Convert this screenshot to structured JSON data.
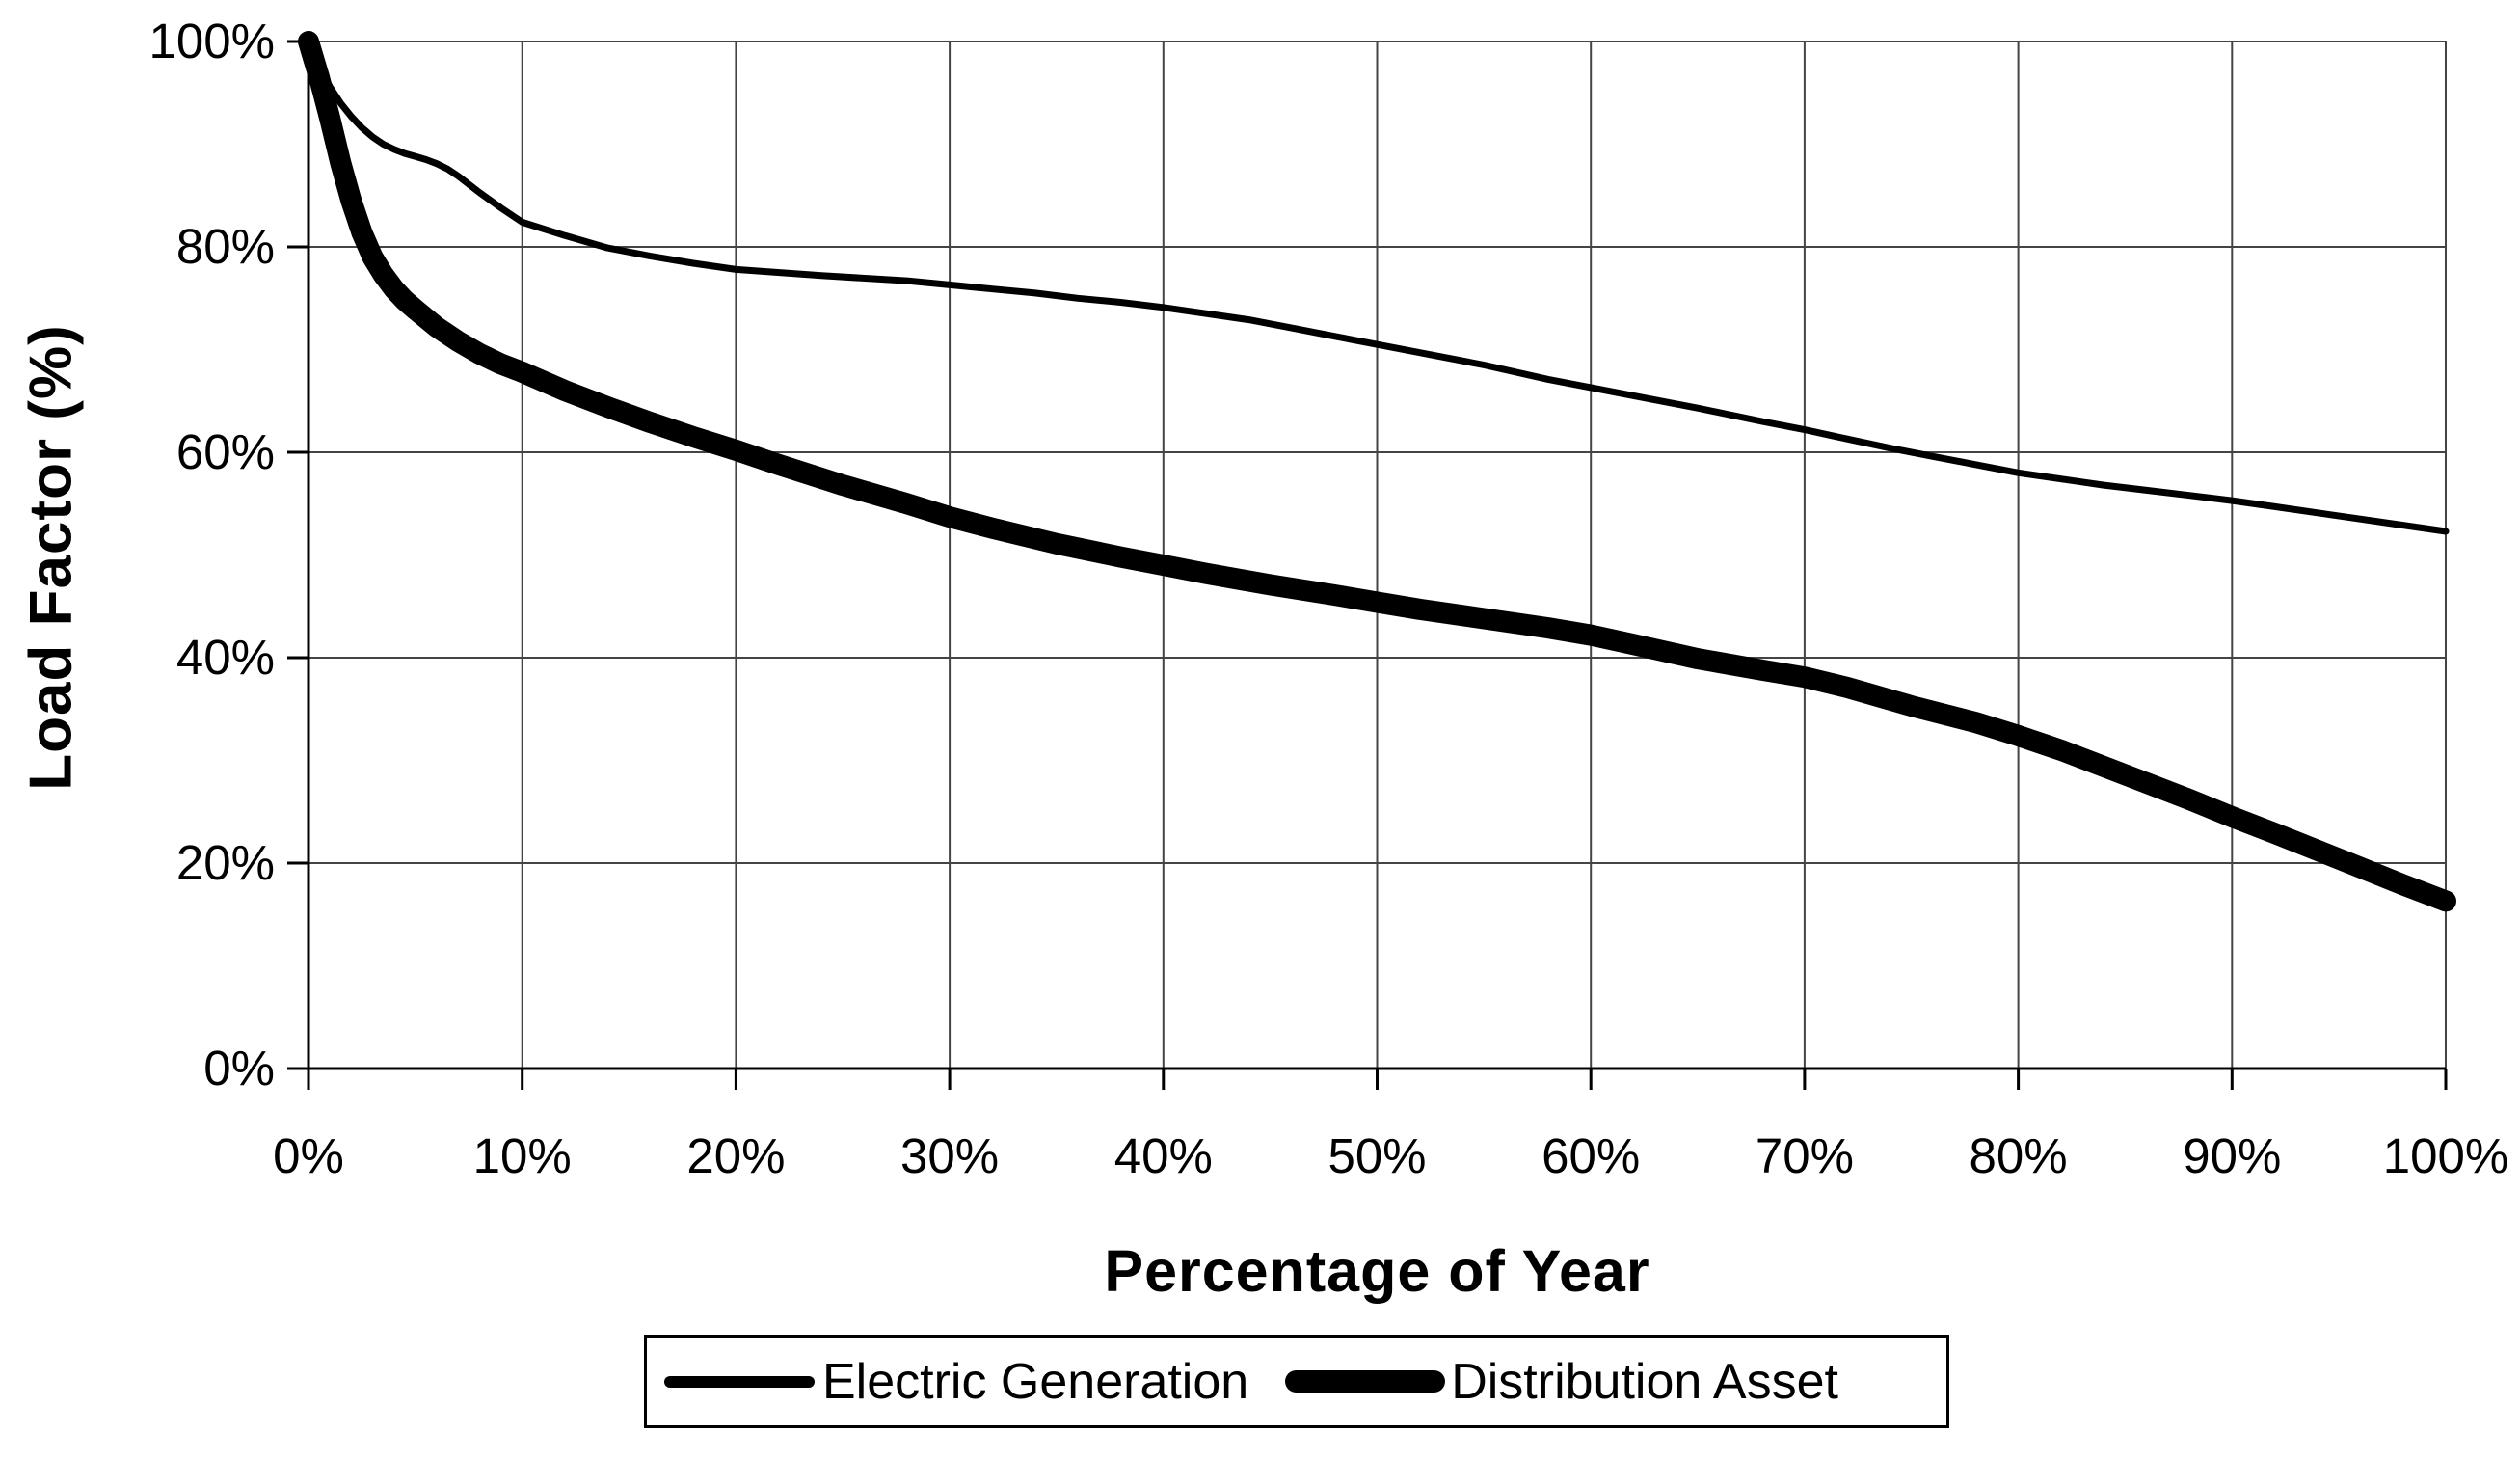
{
  "chart_data": {
    "type": "line",
    "title": "",
    "xlabel": "Percentage of Year",
    "ylabel": "Load Factor (%)",
    "xlim": [
      0,
      100
    ],
    "ylim": [
      0,
      100
    ],
    "grid": true,
    "legend_position": "bottom",
    "x_tick_labels": [
      "0%",
      "10%",
      "20%",
      "30%",
      "40%",
      "50%",
      "60%",
      "70%",
      "80%",
      "90%",
      "100%"
    ],
    "x_tick_values": [
      0,
      10,
      20,
      30,
      40,
      50,
      60,
      70,
      80,
      90,
      100
    ],
    "y_tick_labels": [
      "0%",
      "20%",
      "40%",
      "60%",
      "80%",
      "100%"
    ],
    "y_tick_values": [
      0,
      20,
      40,
      60,
      80,
      100
    ],
    "colors": {
      "line": "#000000",
      "grid": "#444444",
      "axis": "#000000",
      "background": "#ffffff"
    },
    "series": [
      {
        "name": "Electric Generation",
        "stroke_width": 7,
        "points": [
          [
            0,
            100
          ],
          [
            0.5,
            97.6
          ],
          [
            1,
            95.6
          ],
          [
            1.5,
            94.0
          ],
          [
            2,
            92.7
          ],
          [
            2.5,
            91.6
          ],
          [
            3,
            90.7
          ],
          [
            3.5,
            90.0
          ],
          [
            4,
            89.5
          ],
          [
            4.5,
            89.1
          ],
          [
            5,
            88.8
          ],
          [
            5.5,
            88.5
          ],
          [
            6,
            88.1
          ],
          [
            6.5,
            87.6
          ],
          [
            7,
            86.9
          ],
          [
            8,
            85.3
          ],
          [
            9,
            83.8
          ],
          [
            10,
            82.4
          ],
          [
            12,
            81.1
          ],
          [
            14,
            79.9
          ],
          [
            16,
            79.1
          ],
          [
            18,
            78.4
          ],
          [
            20,
            77.8
          ],
          [
            24,
            77.2
          ],
          [
            28,
            76.7
          ],
          [
            30,
            76.3
          ],
          [
            32,
            75.9
          ],
          [
            34,
            75.5
          ],
          [
            36,
            75.0
          ],
          [
            38,
            74.6
          ],
          [
            40,
            74.1
          ],
          [
            42,
            73.5
          ],
          [
            44,
            72.9
          ],
          [
            46,
            72.1
          ],
          [
            48,
            71.3
          ],
          [
            50,
            70.5
          ],
          [
            52,
            69.7
          ],
          [
            55,
            68.5
          ],
          [
            58,
            67.1
          ],
          [
            60,
            66.3
          ],
          [
            62,
            65.5
          ],
          [
            65,
            64.3
          ],
          [
            68,
            63.0
          ],
          [
            70,
            62.2
          ],
          [
            72,
            61.3
          ],
          [
            74,
            60.4
          ],
          [
            76,
            59.6
          ],
          [
            78,
            58.8
          ],
          [
            80,
            58.0
          ],
          [
            82,
            57.4
          ],
          [
            84,
            56.8
          ],
          [
            86,
            56.3
          ],
          [
            88,
            55.8
          ],
          [
            90,
            55.3
          ],
          [
            92,
            54.7
          ],
          [
            94,
            54.1
          ],
          [
            96,
            53.5
          ],
          [
            98,
            52.9
          ],
          [
            100,
            52.3
          ]
        ]
      },
      {
        "name": "Distribution Asset",
        "stroke_width": 22,
        "points": [
          [
            0,
            100
          ],
          [
            0.5,
            96.5
          ],
          [
            1,
            92.5
          ],
          [
            1.5,
            88.2
          ],
          [
            2,
            84.5
          ],
          [
            2.5,
            81.4
          ],
          [
            3,
            79.0
          ],
          [
            3.5,
            77.3
          ],
          [
            4,
            75.9
          ],
          [
            4.5,
            74.8
          ],
          [
            5,
            73.9
          ],
          [
            6,
            72.2
          ],
          [
            7,
            70.8
          ],
          [
            8,
            69.6
          ],
          [
            9,
            68.6
          ],
          [
            10,
            67.8
          ],
          [
            12,
            66.0
          ],
          [
            14,
            64.4
          ],
          [
            16,
            62.9
          ],
          [
            18,
            61.5
          ],
          [
            20,
            60.2
          ],
          [
            22,
            58.8
          ],
          [
            25,
            56.8
          ],
          [
            28,
            55.0
          ],
          [
            30,
            53.7
          ],
          [
            32,
            52.6
          ],
          [
            35,
            51.1
          ],
          [
            38,
            49.8
          ],
          [
            40,
            49.0
          ],
          [
            42,
            48.2
          ],
          [
            45,
            47.1
          ],
          [
            48,
            46.1
          ],
          [
            50,
            45.4
          ],
          [
            52,
            44.7
          ],
          [
            55,
            43.8
          ],
          [
            58,
            42.9
          ],
          [
            60,
            42.2
          ],
          [
            62,
            41.3
          ],
          [
            65,
            39.9
          ],
          [
            68,
            38.8
          ],
          [
            70,
            38.1
          ],
          [
            72,
            37.1
          ],
          [
            75,
            35.3
          ],
          [
            78,
            33.7
          ],
          [
            80,
            32.4
          ],
          [
            82,
            31.0
          ],
          [
            85,
            28.6
          ],
          [
            88,
            26.2
          ],
          [
            90,
            24.5
          ],
          [
            92,
            22.9
          ],
          [
            95,
            20.4
          ],
          [
            98,
            17.9
          ],
          [
            100,
            16.3
          ]
        ]
      }
    ]
  }
}
